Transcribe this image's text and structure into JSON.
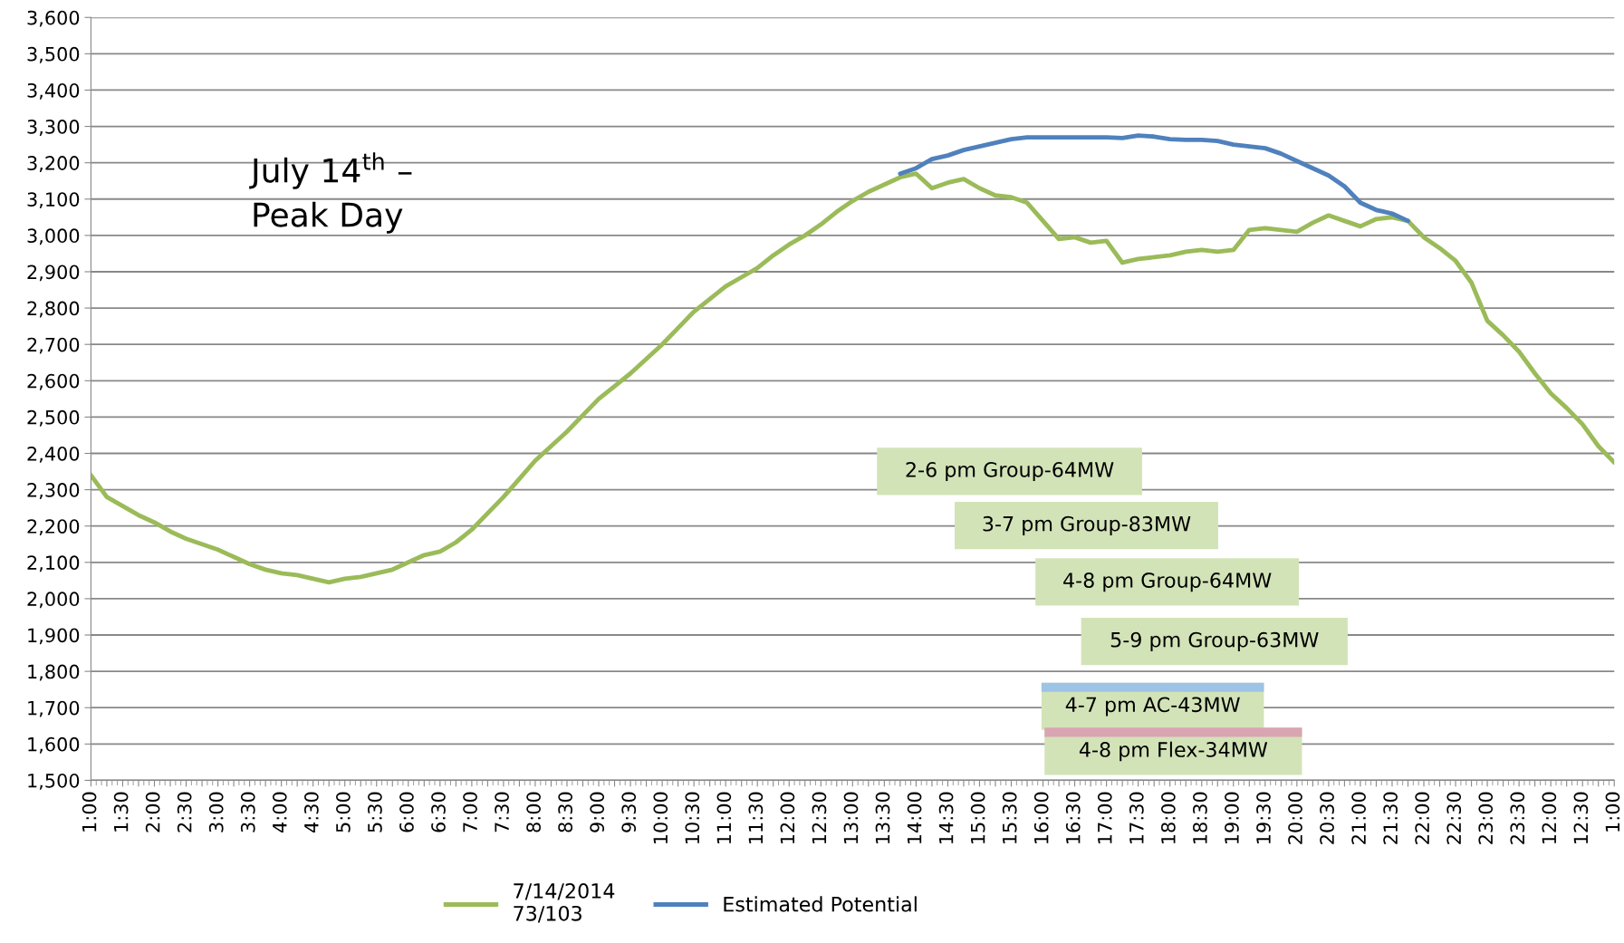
{
  "chart_data": {
    "type": "line",
    "annotations": [
      "July 14$^{th}$ –\nPeak Day",
      "2-6 pm Group-64MW",
      "3-7 pm Group-83MW",
      "4-8 pm Group-64MW",
      "5-9 pm Group-63MW",
      "4-7 pm AC-43MW",
      "4-8 pm Flex-34MW"
    ],
    "categories": [
      "1:00",
      null,
      "1:30",
      null,
      "2:00",
      null,
      "2:30",
      null,
      "3:00",
      null,
      "3:30",
      null,
      "4:00",
      null,
      "4:30",
      null,
      "5:00",
      null,
      "5:30",
      null,
      "6:00",
      null,
      "6:30",
      null,
      "7:00",
      null,
      "7:30",
      null,
      "8:00",
      null,
      "8:30",
      null,
      "9:00",
      null,
      "9:30",
      null,
      "10:00",
      null,
      "10:30",
      null,
      "11:00",
      null,
      "11:30",
      null,
      "12:00",
      null,
      "12:30",
      null,
      "13:00",
      null,
      "13:30",
      null,
      "14:00",
      null,
      "14:30",
      null,
      "15:00",
      null,
      "15:30",
      null,
      "16:00",
      null,
      "16:30",
      null,
      "17:00",
      null,
      "17:30",
      null,
      "18:00",
      null,
      "18:30",
      null,
      "19:00",
      null,
      "19:30",
      null,
      "20:00",
      null,
      "20:30",
      null,
      "21:00",
      null,
      "21:30",
      null,
      "22:00",
      null,
      "22:30",
      null,
      "23:00",
      null,
      "23:30",
      null,
      "12:00",
      null,
      "12:30",
      null,
      "1:00"
    ],
    "series": [
      {
        "name": "7/14/2014\n73/103",
        "color": "#9bbb59",
        "values": [
          2340,
          2280,
          2255,
          2230,
          2210,
          2185,
          2165,
          2150,
          2135,
          2115,
          2095,
          2080,
          2070,
          2065,
          2055,
          2045,
          2055,
          2060,
          2070,
          2080,
          2100,
          2120,
          2130,
          2155,
          2190,
          2235,
          2280,
          2330,
          2380,
          2420,
          2460,
          2505,
          2550,
          2585,
          2620,
          2660,
          2700,
          2745,
          2790,
          2825,
          2860,
          2885,
          2910,
          2945,
          2975,
          3000,
          3030,
          3065,
          3095,
          3120,
          3140,
          3160,
          3170,
          3130,
          3145,
          3155,
          3130,
          3110,
          3105,
          3090,
          3040,
          2990,
          2995,
          2980,
          2985,
          2925,
          2935,
          2940,
          2945,
          2955,
          2960,
          2955,
          2960,
          3015,
          3020,
          3015,
          3010,
          3035,
          3055,
          3040,
          3025,
          3045,
          3050,
          3040,
          2995,
          2965,
          2930,
          2870,
          2765,
          2725,
          2680,
          2620,
          2565,
          2525,
          2480,
          2420,
          2375
        ]
      },
      {
        "name": "Estimated Potential",
        "color": "#4f81bd",
        "values": [
          null,
          null,
          null,
          null,
          null,
          null,
          null,
          null,
          null,
          null,
          null,
          null,
          null,
          null,
          null,
          null,
          null,
          null,
          null,
          null,
          null,
          null,
          null,
          null,
          null,
          null,
          null,
          null,
          null,
          null,
          null,
          null,
          null,
          null,
          null,
          null,
          null,
          null,
          null,
          null,
          null,
          null,
          null,
          null,
          null,
          null,
          null,
          null,
          null,
          null,
          null,
          3170,
          3185,
          3210,
          3220,
          3235,
          3245,
          3255,
          3265,
          3270,
          3270,
          3270,
          3270,
          3270,
          3270,
          3268,
          3275,
          3272,
          3265,
          3263,
          3263,
          3260,
          3250,
          3245,
          3240,
          3225,
          3205,
          3185,
          3165,
          3135,
          3090,
          3070,
          3060,
          3040,
          null,
          null,
          null,
          null,
          null,
          null,
          null,
          null,
          null,
          null,
          null,
          null,
          null
        ]
      }
    ],
    "ylim": [
      1500,
      3600
    ],
    "yticks": [
      {
        "value": 1500,
        "label": "1,500"
      },
      {
        "value": 1600,
        "label": "1,600"
      },
      {
        "value": 1700,
        "label": "1,700"
      },
      {
        "value": 1800,
        "label": "1,800"
      },
      {
        "value": 1900,
        "label": "1,900"
      },
      {
        "value": 2000,
        "label": "2,000"
      },
      {
        "value": 2100,
        "label": "2,100"
      },
      {
        "value": 2200,
        "label": "2,200"
      },
      {
        "value": 2300,
        "label": "2,300"
      },
      {
        "value": 2400,
        "label": "2,400"
      },
      {
        "value": 2500,
        "label": "2,500"
      },
      {
        "value": 2600,
        "label": "2,600"
      },
      {
        "value": 2700,
        "label": "2,700"
      },
      {
        "value": 2800,
        "label": "2,800"
      },
      {
        "value": 2900,
        "label": "2,900"
      },
      {
        "value": 3000,
        "label": "3,000"
      },
      {
        "value": 3100,
        "label": "3,100"
      },
      {
        "value": 3200,
        "label": "3,200"
      },
      {
        "value": 3300,
        "label": "3,300"
      },
      {
        "value": 3400,
        "label": "3,400"
      },
      {
        "value": 3500,
        "label": "3,500"
      },
      {
        "value": 3600,
        "label": "3,600"
      }
    ],
    "grid": "y",
    "legend": "bottom",
    "line_style": "solid",
    "marker": "none"
  }
}
